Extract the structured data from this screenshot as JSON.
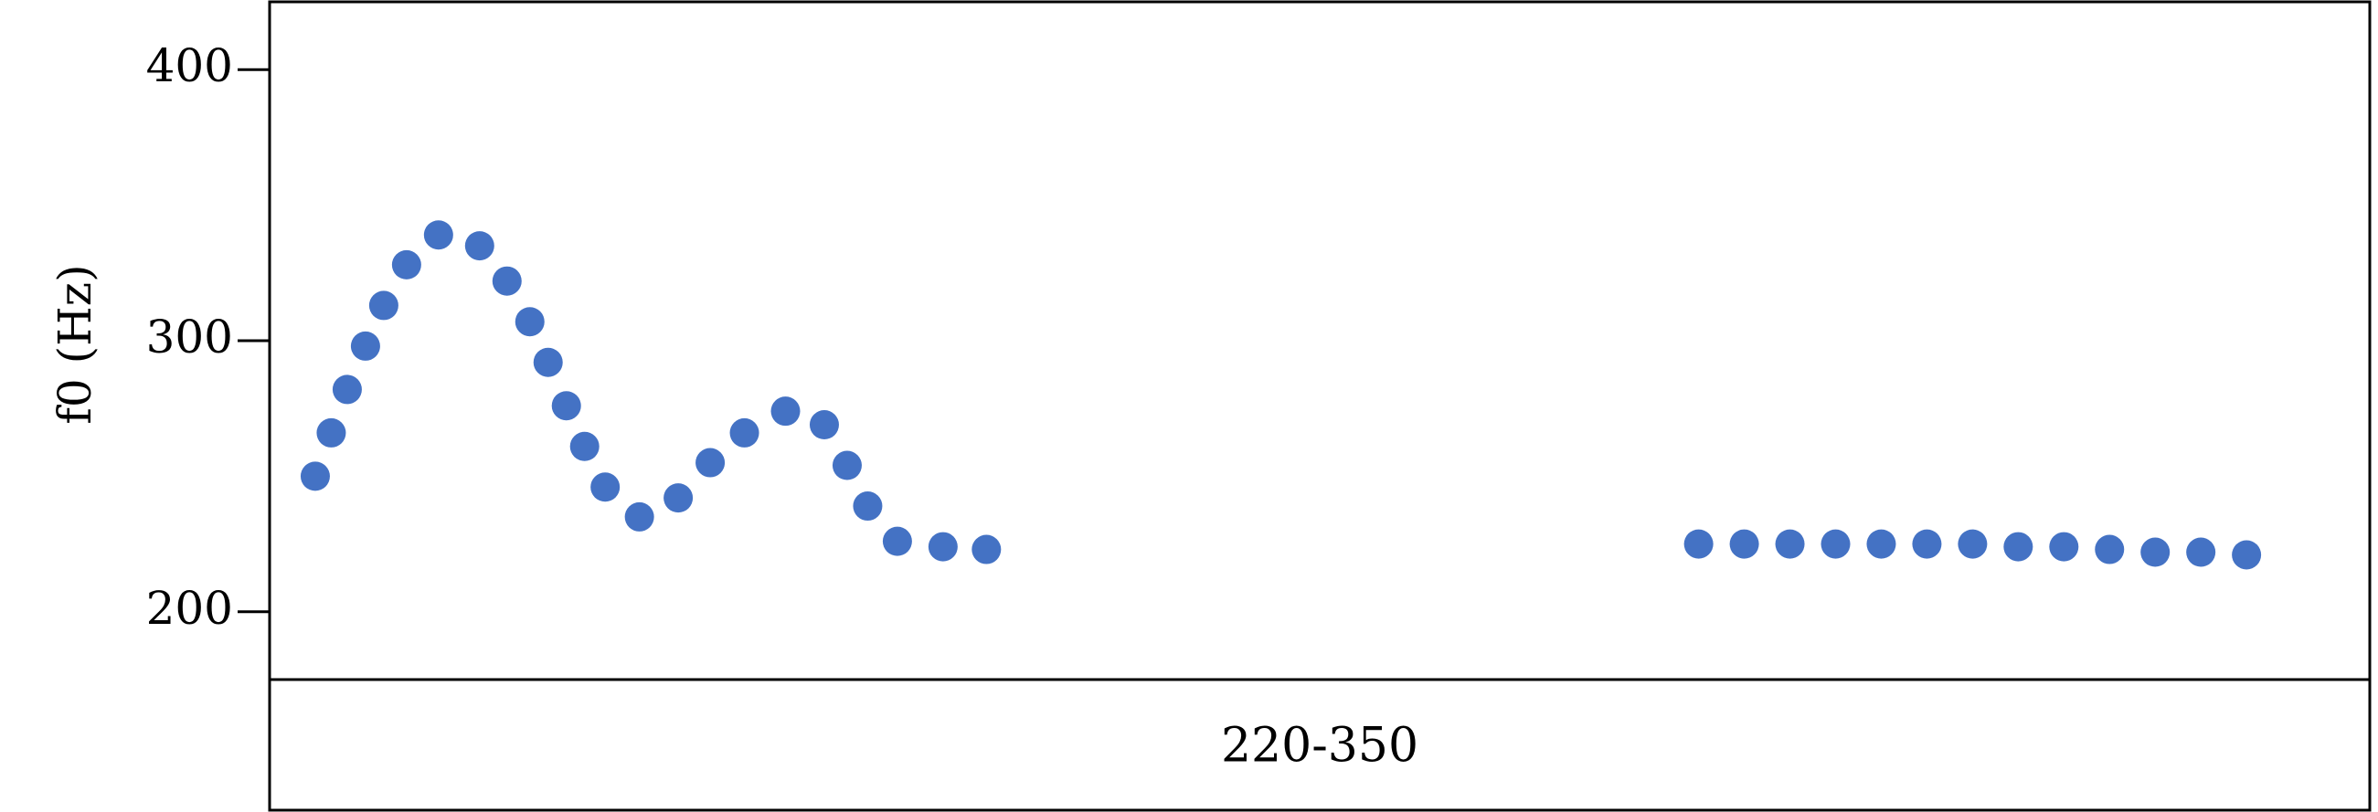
{
  "chart_data": {
    "type": "scatter",
    "title": "",
    "xlabel": "",
    "ylabel": "f0 (Hz)",
    "ylim": [
      175,
      425
    ],
    "xlim": [
      0,
      46
    ],
    "y_ticks": [
      200,
      300,
      400
    ],
    "y_tick_labels": [
      "200",
      "300",
      "400"
    ],
    "grid": false,
    "row_label": "220-350",
    "marker_color": "#4472C4",
    "series": [
      {
        "points": [
          {
            "x": 1.0,
            "y": 250
          },
          {
            "x": 1.35,
            "y": 266
          },
          {
            "x": 1.7,
            "y": 282
          },
          {
            "x": 2.1,
            "y": 298
          },
          {
            "x": 2.5,
            "y": 313
          },
          {
            "x": 3.0,
            "y": 328
          },
          {
            "x": 3.7,
            "y": 339
          },
          {
            "x": 4.6,
            "y": 335
          },
          {
            "x": 5.2,
            "y": 322
          },
          {
            "x": 5.7,
            "y": 307
          },
          {
            "x": 6.1,
            "y": 292
          },
          {
            "x": 6.5,
            "y": 276
          },
          {
            "x": 6.9,
            "y": 261
          },
          {
            "x": 7.35,
            "y": 246
          },
          {
            "x": 8.1,
            "y": 235
          },
          {
            "x": 8.95,
            "y": 242
          },
          {
            "x": 9.65,
            "y": 255
          },
          {
            "x": 10.4,
            "y": 266
          },
          {
            "x": 11.3,
            "y": 274
          },
          {
            "x": 12.15,
            "y": 269
          },
          {
            "x": 12.65,
            "y": 254
          },
          {
            "x": 13.1,
            "y": 239
          },
          {
            "x": 13.75,
            "y": 226
          },
          {
            "x": 14.75,
            "y": 224
          },
          {
            "x": 15.7,
            "y": 223
          },
          {
            "x": 31.3,
            "y": 225
          },
          {
            "x": 32.3,
            "y": 225
          },
          {
            "x": 33.3,
            "y": 225
          },
          {
            "x": 34.3,
            "y": 225
          },
          {
            "x": 35.3,
            "y": 225
          },
          {
            "x": 36.3,
            "y": 225
          },
          {
            "x": 37.3,
            "y": 225
          },
          {
            "x": 38.3,
            "y": 224
          },
          {
            "x": 39.3,
            "y": 224
          },
          {
            "x": 40.3,
            "y": 223
          },
          {
            "x": 41.3,
            "y": 222
          },
          {
            "x": 42.3,
            "y": 222
          },
          {
            "x": 43.3,
            "y": 221
          }
        ]
      }
    ]
  }
}
